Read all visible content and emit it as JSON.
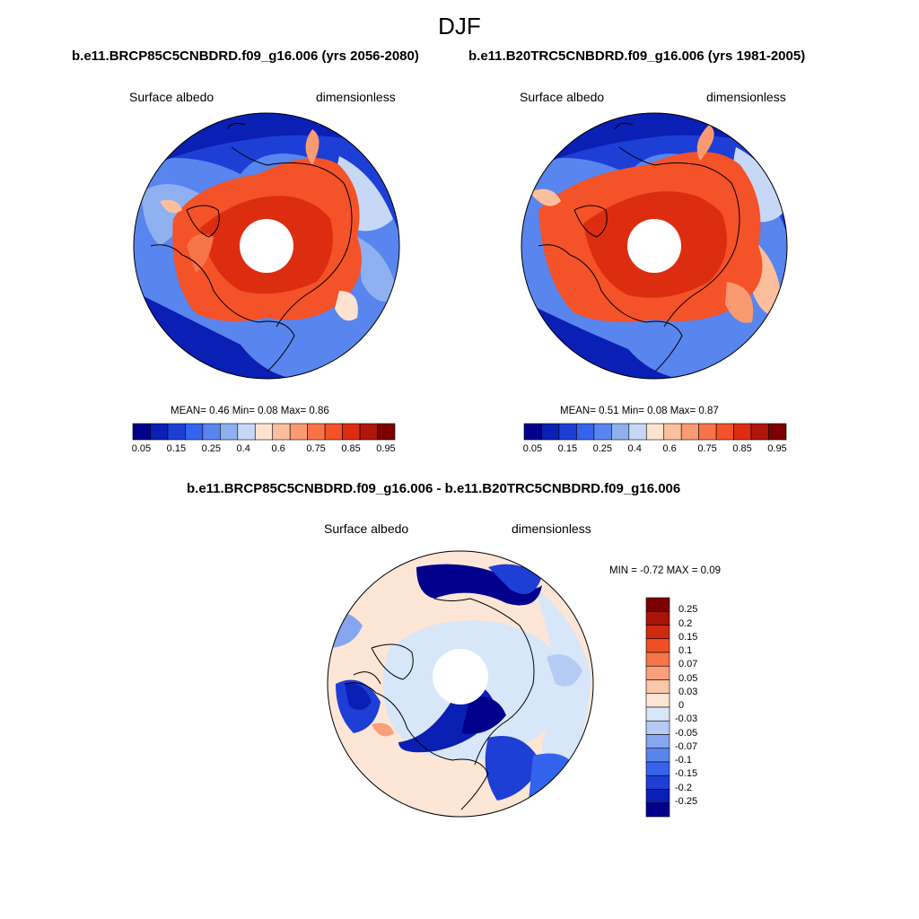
{
  "figure": {
    "title": "DJF"
  },
  "palette": {
    "abs": [
      "#00008c",
      "#0a1fb4",
      "#1e3fd6",
      "#3464ee",
      "#5985ee",
      "#8eb0f0",
      "#c6d8f6",
      "#fde3cf",
      "#fcbf9e",
      "#fa9a72",
      "#f77449",
      "#f45228",
      "#dc2d10",
      "#b0160a",
      "#7c0000"
    ],
    "diff": [
      "#00008c",
      "#0a1fb4",
      "#1e3fd6",
      "#3464ee",
      "#5985ee",
      "#86a6f0",
      "#b5cbf4",
      "#d8e6fa",
      "#fde6d6",
      "#fcc6a8",
      "#fa9f7a",
      "#f77449",
      "#ee4f26",
      "#cf2a10",
      "#a8140a",
      "#7c0000"
    ]
  },
  "panels": [
    {
      "title": "b.e11.BRCP85C5CNBDRD.f09_g16.006 (yrs 2056-2080)",
      "left_label": "Surface albedo",
      "right_label": "dimensionless",
      "stats_text": "MEAN=   0.46  Min=   0.08  Max=   0.86",
      "mean": 0.46,
      "min": 0.08,
      "max": 0.86
    },
    {
      "title": "b.e11.B20TRC5CNBDRD.f09_g16.006 (yrs 1981-2005)",
      "left_label": "Surface albedo",
      "right_label": "dimensionless",
      "stats_text": "MEAN=   0.51  Min=   0.08  Max=   0.87",
      "mean": 0.51,
      "min": 0.08,
      "max": 0.87
    },
    {
      "title": "b.e11.BRCP85C5CNBDRD.f09_g16.006 - b.e11.B20TRC5CNBDRD.f09_g16.006",
      "left_label": "Surface albedo",
      "right_label": "dimensionless",
      "stats_text": "MIN =  -0.72 MAX =   0.09",
      "min": -0.72,
      "max": 0.09
    }
  ],
  "colorbar_abs": {
    "labels": [
      "0.05",
      "0.15",
      "0.25",
      "0.4",
      "0.6",
      "0.75",
      "0.85",
      "0.95"
    ]
  },
  "colorbar_diff": {
    "labels": [
      "0.25",
      "0.2",
      "0.15",
      "0.1",
      "0.07",
      "0.05",
      "0.03",
      "0",
      "-0.03",
      "-0.05",
      "-0.07",
      "-0.1",
      "-0.15",
      "-0.2",
      "-0.25"
    ]
  }
}
